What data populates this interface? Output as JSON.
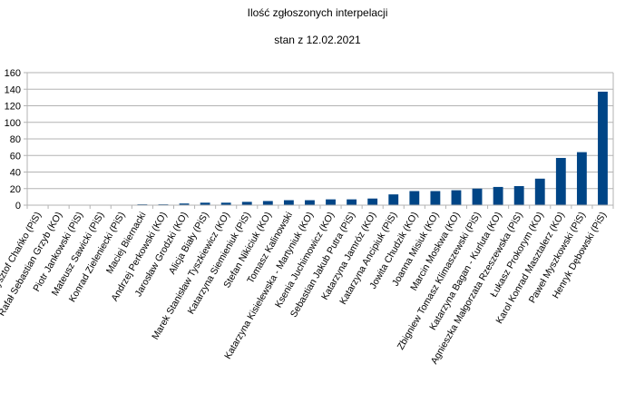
{
  "chart_data": {
    "type": "bar",
    "title": "Ilość zgłoszonych interpelacji",
    "subtitle": "stan z 12.02.2021",
    "xlabel": "",
    "ylabel": "",
    "ylim": [
      0,
      160
    ],
    "yticks": [
      0,
      20,
      40,
      60,
      80,
      100,
      120,
      140,
      160
    ],
    "grid": true,
    "legend": "none",
    "bar_color": "#004586",
    "categories": [
      "Jacek Krzysztof Chańko (PiS)",
      "Rafał Sebastian Grzyb (KO)",
      "Piotr Jankowski (PiS)",
      "Mateusz Sawicki (PiS)",
      "Konrad Zieleniecki (PiS)",
      "Maciej Biernacki",
      "Andrzej Perkowski (KO)",
      "Jarosław Grodzki (KO)",
      "Alicja Biały (PiS)",
      "Marek Stanisław Tyszkiewicz (KO)",
      "Katarzyna Siemieniuk (PiS)",
      "Stefan Nikiciuk (KO)",
      "Tomasz Kalinowski",
      "Katarzyna Kisielewska - Martyniuk (KO)",
      "Ksenia Juchimowicz (KO)",
      "Sebastian Jakub Putra (PiS)",
      "Katarzyna Jamróz (KO)",
      "Katarzyna Ancipiuk (PiS)",
      "Jowita Chudzik (KO)",
      "Joanna Misiuk (KO)",
      "Marcin Moskwa (KO)",
      "Zbigniew Tomasz Klimaszewski (PiS)",
      "Katarzyna Bagan - Kurluta (KO)",
      "Agnieszka Małgorzata Rzeszewska (PiS)",
      "Łukasz Prokorym (KO)",
      "Karol Konrad Masztalerz (KO)",
      "Paweł Myszkowski (PiS)",
      "Henryk Dębowski (PiS)"
    ],
    "values": [
      0,
      0,
      0,
      0,
      0,
      1,
      1,
      2,
      3,
      3,
      4,
      5,
      6,
      6,
      7,
      7,
      8,
      13,
      17,
      17,
      18,
      20,
      22,
      23,
      32,
      57,
      64,
      137
    ]
  }
}
